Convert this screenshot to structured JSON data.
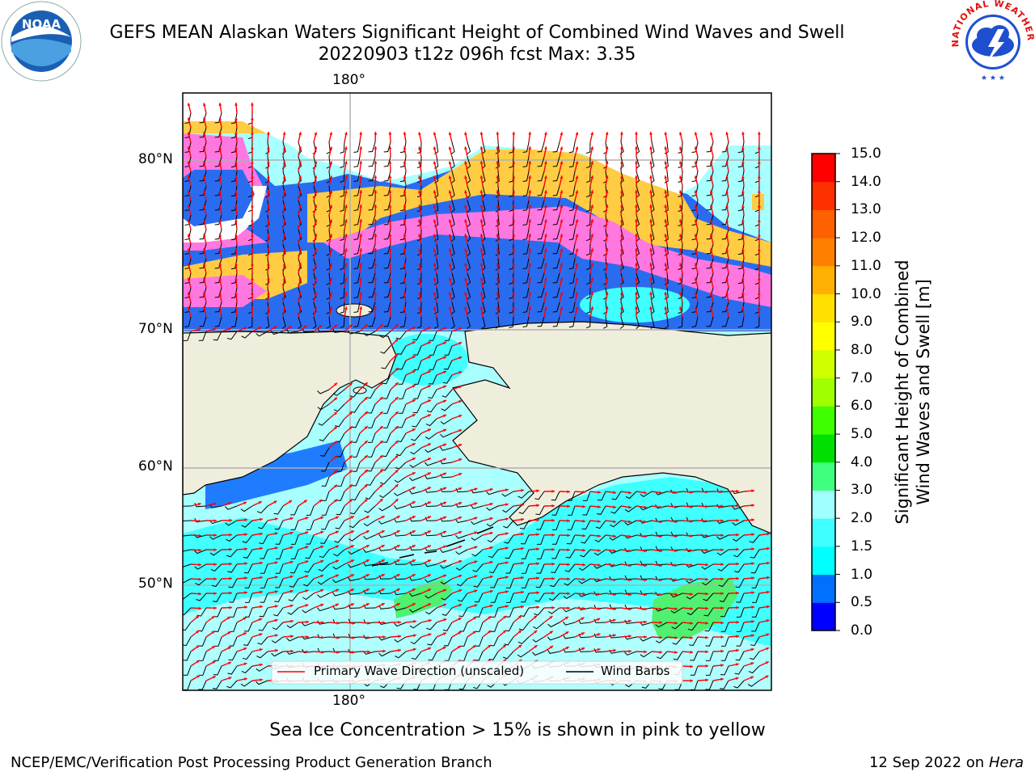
{
  "title_line1": "GEFS MEAN Alaskan Waters Significant Height of Combined Wind Waves and Swell",
  "title_line2": "20220903 t12z 096h fcst   Max: 3.35",
  "logos": {
    "left": "NOAA",
    "right": "NATIONAL WEATHER SERVICE"
  },
  "map": {
    "lon_label_top": "180°",
    "lon_label_bottom": "180°",
    "lat_labels": [
      "80°N",
      "70°N",
      "60°N",
      "50°N"
    ]
  },
  "legend": {
    "wave_label": "Primary Wave Direction (unscaled)",
    "barb_label": "Wind Barbs",
    "wave_color": "#ff0000",
    "barb_color": "#000000"
  },
  "colorbar": {
    "label": "Significant Height of Combined Wind Waves and Swell [m]",
    "label_line1": "Significant Height of Combined",
    "label_line2": "Wind Waves and Swell [m]",
    "ticks": [
      "15.0",
      "14.0",
      "13.0",
      "12.0",
      "11.0",
      "10.0",
      "9.0",
      "8.0",
      "7.0",
      "6.0",
      "5.0",
      "4.0",
      "3.0",
      "2.0",
      "1.5",
      "1.0",
      "0.5",
      "0.0"
    ],
    "colors": [
      "#0000ff",
      "#0070ff",
      "#00ffff",
      "#40ffff",
      "#a0ffff",
      "#40ff80",
      "#00e000",
      "#40ff00",
      "#a0ff00",
      "#d0ff00",
      "#ffff00",
      "#ffe000",
      "#ffb000",
      "#ff8000",
      "#ff6000",
      "#ff3000",
      "#ff0000"
    ]
  },
  "ice_colors": [
    "#ff60ff",
    "#ff90d0",
    "#ffc060",
    "#ffe040"
  ],
  "land_color": "#efeddc",
  "note": "Sea Ice Concentration > 15% is shown in pink to yellow",
  "footer_left": "NCEP/EMC/Verification Post Processing Product Generation Branch",
  "footer_date": "12 Sep 2022 on",
  "footer_machine": "Hera"
}
